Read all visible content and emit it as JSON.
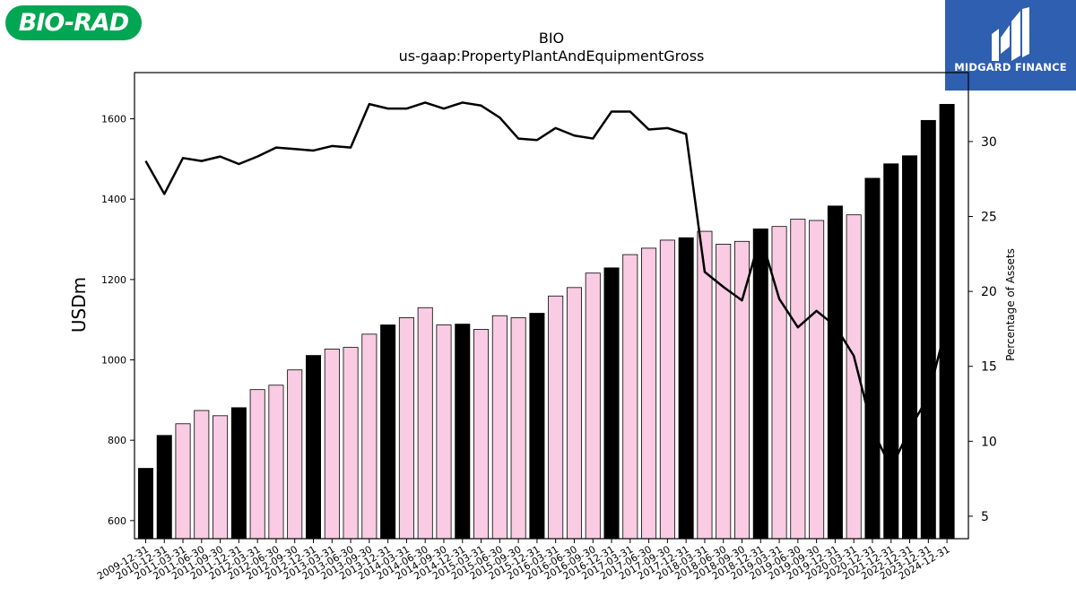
{
  "logos": {
    "left_brand": "BIO-RAD",
    "right_brand": "MIDGARD FINANCE",
    "colors": {
      "bio_rad_green": "#00a651",
      "midgard_blue": "#2f5fb0"
    }
  },
  "chart_data": {
    "type": "bar",
    "title": "BIO",
    "subtitle": "us-gaap:PropertyPlantAndEquipmentGross",
    "ylabel": "USDm",
    "y2label": "Percentage of Assets",
    "ylim": [
      555,
      1715
    ],
    "y2lim": [
      3.5,
      34.6
    ],
    "yticks": [
      600,
      800,
      1000,
      1200,
      1400,
      1600
    ],
    "y2ticks": [
      5,
      10,
      15,
      20,
      25,
      30
    ],
    "categories": [
      "2009-12-31",
      "2010-12-31",
      "2011-03-31",
      "2011-06-30",
      "2011-09-30",
      "2011-12-31",
      "2012-03-31",
      "2012-06-30",
      "2012-09-30",
      "2012-12-31",
      "2013-03-31",
      "2013-06-30",
      "2013-09-30",
      "2013-12-31",
      "2014-03-31",
      "2014-06-30",
      "2014-09-30",
      "2014-12-31",
      "2015-03-31",
      "2015-06-30",
      "2015-09-30",
      "2015-12-31",
      "2016-03-31",
      "2016-06-30",
      "2016-09-30",
      "2016-12-31",
      "2017-03-31",
      "2017-06-30",
      "2017-09-30",
      "2017-12-31",
      "2018-03-31",
      "2018-06-30",
      "2018-09-30",
      "2018-12-31",
      "2019-03-31",
      "2019-06-30",
      "2019-09-30",
      "2019-12-31",
      "2020-03-31",
      "2020-12-31",
      "2021-12-31",
      "2022-12-31",
      "2023-12-31",
      "2024-12-31"
    ],
    "series": [
      {
        "type": "bar",
        "axis": "left",
        "values": [
          730,
          812,
          841,
          874,
          861,
          881,
          926,
          937,
          975,
          1011,
          1027,
          1031,
          1064,
          1087,
          1105,
          1130,
          1087,
          1089,
          1076,
          1110,
          1105,
          1116,
          1159,
          1180,
          1216,
          1229,
          1262,
          1278,
          1298,
          1304,
          1320,
          1288,
          1295,
          1326,
          1332,
          1350,
          1347,
          1383,
          1361,
          1452,
          1488,
          1508,
          1596,
          1636
        ],
        "annual": [
          true,
          true,
          false,
          false,
          false,
          true,
          false,
          false,
          false,
          true,
          false,
          false,
          false,
          true,
          false,
          false,
          false,
          true,
          false,
          false,
          false,
          true,
          false,
          false,
          false,
          true,
          false,
          false,
          false,
          true,
          false,
          false,
          false,
          true,
          false,
          false,
          false,
          true,
          false,
          true,
          true,
          true,
          true,
          true
        ],
        "colors": {
          "annual": "#000000",
          "quarterly": "#f9cce3"
        }
      },
      {
        "type": "line",
        "axis": "right",
        "values": [
          28.7,
          26.5,
          28.9,
          28.7,
          29.0,
          28.5,
          29.0,
          29.6,
          29.5,
          29.4,
          29.7,
          29.6,
          32.5,
          32.2,
          32.2,
          32.6,
          32.2,
          32.6,
          32.4,
          31.6,
          30.2,
          30.1,
          30.9,
          30.4,
          30.2,
          32.0,
          32.0,
          30.8,
          30.9,
          30.5,
          21.3,
          20.3,
          19.4,
          23.7,
          19.5,
          17.6,
          18.7,
          17.7,
          15.7,
          10.8,
          8.2,
          10.8,
          13.0,
          17.9
        ],
        "color": "#000000"
      }
    ],
    "grid": false,
    "legend": "none"
  }
}
